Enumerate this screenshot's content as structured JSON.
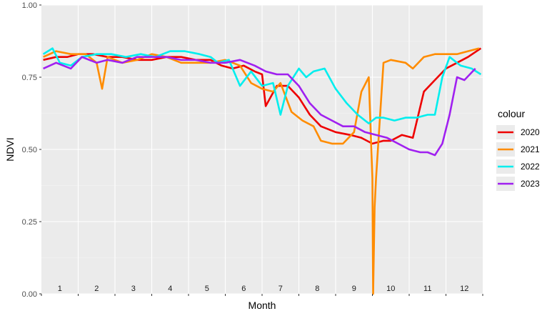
{
  "chart_data": {
    "type": "line",
    "title": "",
    "xlabel": "Month",
    "ylabel": "NDVI",
    "ylim": [
      0,
      1
    ],
    "yticks": [
      "0.00",
      "0.25",
      "0.50",
      "0.75",
      "1.00"
    ],
    "yticks_values": [
      0,
      0.25,
      0.5,
      0.75,
      1
    ],
    "xlim": [
      0.5,
      12.5
    ],
    "month_labels": [
      "1",
      "2",
      "3",
      "4",
      "5",
      "6",
      "7",
      "8",
      "9",
      "10",
      "11",
      "12"
    ],
    "grid": true,
    "legend": {
      "title": "colour",
      "position": "right"
    },
    "series": [
      {
        "name": "2020",
        "color": "#ee0000",
        "x": [
          0.55,
          0.9,
          1.2,
          1.5,
          1.9,
          2.3,
          2.7,
          3.1,
          3.5,
          3.9,
          4.3,
          4.7,
          5.1,
          5.4,
          5.7,
          6.0,
          6.3,
          6.5,
          6.6,
          6.9,
          7.2,
          7.5,
          7.8,
          8.1,
          8.5,
          8.9,
          9.2,
          9.5,
          9.8,
          10.0,
          10.3,
          10.6,
          10.9,
          11.2,
          11.5,
          11.8,
          12.1,
          12.45
        ],
        "y": [
          0.81,
          0.82,
          0.82,
          0.83,
          0.83,
          0.82,
          0.82,
          0.81,
          0.81,
          0.82,
          0.82,
          0.81,
          0.81,
          0.79,
          0.78,
          0.79,
          0.77,
          0.76,
          0.65,
          0.72,
          0.72,
          0.68,
          0.62,
          0.58,
          0.56,
          0.55,
          0.54,
          0.52,
          0.53,
          0.53,
          0.55,
          0.54,
          0.7,
          0.74,
          0.78,
          0.8,
          0.82,
          0.85
        ]
      },
      {
        "name": "2021",
        "color": "#ff8c00",
        "x": [
          0.55,
          0.9,
          1.3,
          1.7,
          2.0,
          2.15,
          2.3,
          2.7,
          3.1,
          3.5,
          3.9,
          4.3,
          4.7,
          5.1,
          5.5,
          5.9,
          6.2,
          6.5,
          6.8,
          7.0,
          7.3,
          7.6,
          7.9,
          8.1,
          8.4,
          8.7,
          9.0,
          9.2,
          9.4,
          9.5,
          9.52,
          9.56,
          9.6,
          9.7,
          9.8,
          10.0,
          10.4,
          10.6,
          10.9,
          11.2,
          11.5,
          11.8,
          12.1,
          12.4
        ],
        "y": [
          0.82,
          0.84,
          0.83,
          0.83,
          0.8,
          0.71,
          0.82,
          0.8,
          0.81,
          0.83,
          0.82,
          0.8,
          0.8,
          0.8,
          0.81,
          0.79,
          0.73,
          0.71,
          0.7,
          0.73,
          0.63,
          0.6,
          0.58,
          0.53,
          0.52,
          0.52,
          0.56,
          0.7,
          0.75,
          0.4,
          0.0,
          0.3,
          0.4,
          0.6,
          0.8,
          0.81,
          0.8,
          0.78,
          0.82,
          0.83,
          0.83,
          0.83,
          0.84,
          0.85
        ]
      },
      {
        "name": "2022",
        "color": "#00eeee",
        "x": [
          0.55,
          0.8,
          1.0,
          1.3,
          1.6,
          2.0,
          2.4,
          2.8,
          3.2,
          3.6,
          4.0,
          4.4,
          4.8,
          5.1,
          5.3,
          5.6,
          5.9,
          6.2,
          6.5,
          6.8,
          7.0,
          7.2,
          7.5,
          7.7,
          7.9,
          8.2,
          8.5,
          8.8,
          9.1,
          9.4,
          9.6,
          9.8,
          10.1,
          10.4,
          10.7,
          11.0,
          11.2,
          11.4,
          11.6,
          11.9,
          12.2,
          12.45
        ],
        "y": [
          0.83,
          0.85,
          0.8,
          0.79,
          0.82,
          0.83,
          0.83,
          0.82,
          0.83,
          0.82,
          0.84,
          0.84,
          0.83,
          0.82,
          0.8,
          0.81,
          0.72,
          0.77,
          0.72,
          0.73,
          0.62,
          0.72,
          0.78,
          0.75,
          0.77,
          0.78,
          0.71,
          0.66,
          0.62,
          0.59,
          0.61,
          0.61,
          0.6,
          0.61,
          0.61,
          0.62,
          0.62,
          0.75,
          0.82,
          0.79,
          0.78,
          0.76
        ]
      },
      {
        "name": "2023",
        "color": "#a020f0",
        "x": [
          0.55,
          0.9,
          1.3,
          1.6,
          2.0,
          2.3,
          2.7,
          3.1,
          3.5,
          3.9,
          4.3,
          4.7,
          5.1,
          5.5,
          5.9,
          6.3,
          6.6,
          6.9,
          7.2,
          7.5,
          7.8,
          8.1,
          8.4,
          8.7,
          9.0,
          9.3,
          9.6,
          9.9,
          10.2,
          10.5,
          10.8,
          11.0,
          11.2,
          11.4,
          11.6,
          11.8,
          12.0,
          12.3
        ],
        "y": [
          0.78,
          0.8,
          0.78,
          0.82,
          0.8,
          0.81,
          0.8,
          0.82,
          0.82,
          0.82,
          0.81,
          0.81,
          0.8,
          0.8,
          0.81,
          0.79,
          0.77,
          0.76,
          0.76,
          0.72,
          0.66,
          0.62,
          0.6,
          0.58,
          0.58,
          0.56,
          0.55,
          0.54,
          0.52,
          0.5,
          0.49,
          0.49,
          0.48,
          0.52,
          0.62,
          0.75,
          0.74,
          0.78
        ]
      }
    ]
  }
}
